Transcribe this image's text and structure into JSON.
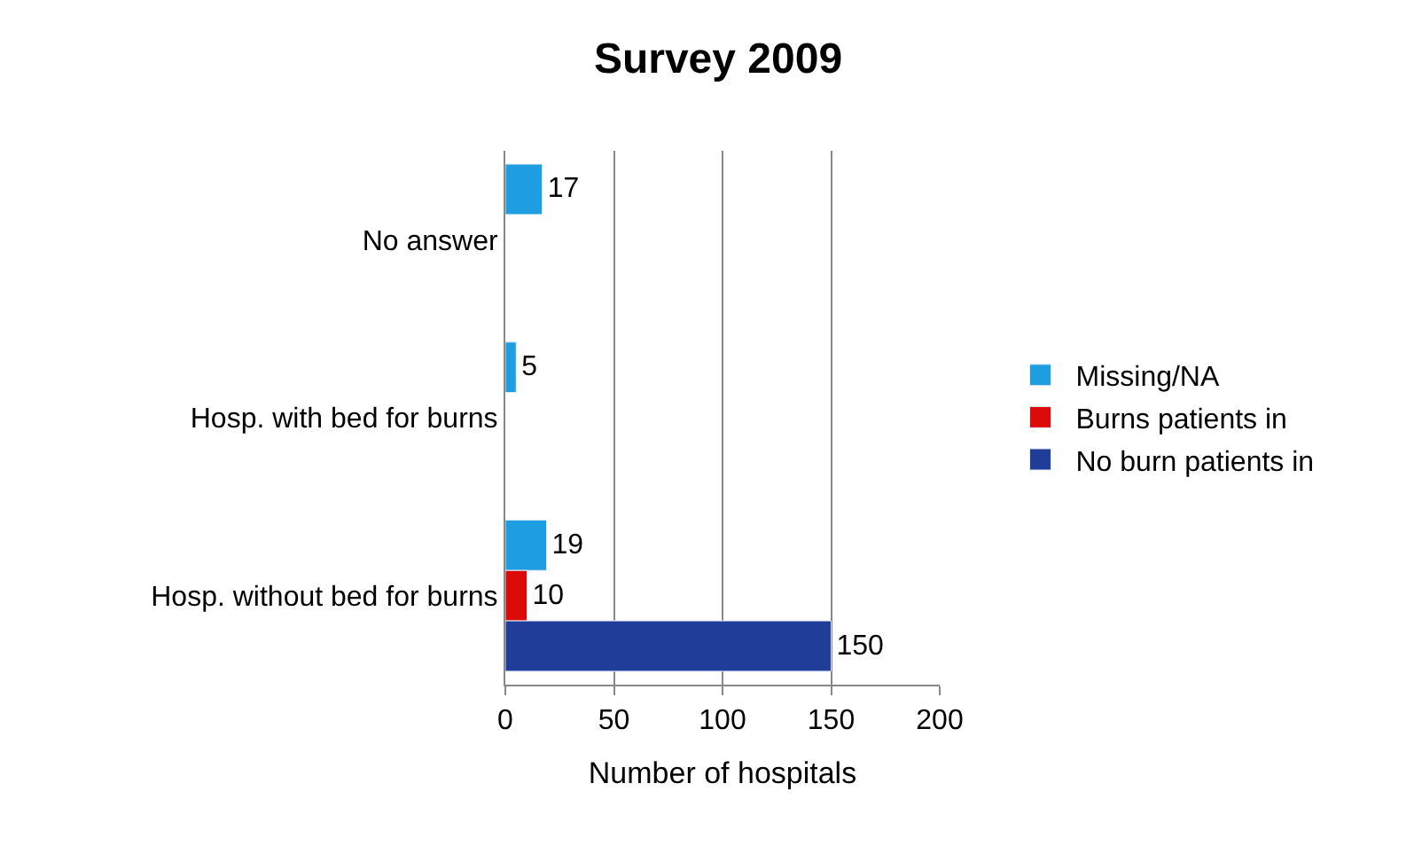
{
  "chart_data": {
    "type": "bar",
    "orientation": "horizontal",
    "title": "Survey 2009",
    "xlabel": "Number of hospitals",
    "categories": [
      "No answer",
      "Hosp. with bed for burns",
      "Hosp. without bed for burns"
    ],
    "series": [
      {
        "name": "Missing/NA",
        "color": "#1e9ee0",
        "values": [
          17,
          5,
          19
        ]
      },
      {
        "name": "Burns patients in",
        "color": "#dd0a0a",
        "values": [
          null,
          null,
          10
        ]
      },
      {
        "name": "No burn patients in",
        "color": "#1f3d99",
        "values": [
          null,
          null,
          150
        ]
      }
    ],
    "xlim": [
      0,
      200
    ],
    "xticks": [
      0,
      50,
      100,
      150,
      200
    ],
    "grid": "x",
    "legend": "right",
    "data_labels": true
  }
}
